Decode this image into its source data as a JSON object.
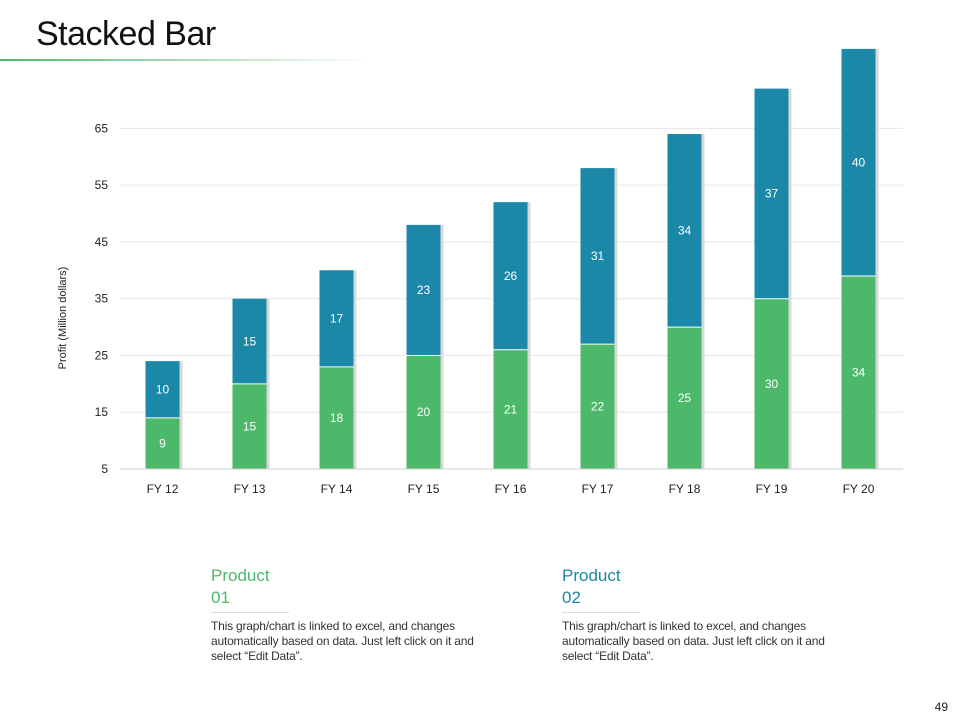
{
  "slide": {
    "title": "Stacked Bar",
    "page_number": "49"
  },
  "colors": {
    "product_01": "#4cb86a",
    "product_02": "#1b88a8",
    "product_01_title": "#4cb86a",
    "product_02_title": "#1b88a8"
  },
  "chart_data": {
    "type": "bar",
    "stacked": true,
    "title": "",
    "xlabel": "",
    "ylabel": "Profit  (Million dollars)",
    "ylim": [
      5,
      70
    ],
    "yticks": [
      5,
      15,
      25,
      35,
      45,
      55,
      65
    ],
    "grid": true,
    "categories": [
      "FY  12",
      "FY  13",
      "FY  14",
      "FY  15",
      "FY  16",
      "FY  17",
      "FY  18",
      "FY  19",
      "FY  20"
    ],
    "series": [
      {
        "values": [
          9,
          15,
          18,
          20,
          21,
          22,
          25,
          30,
          34
        ],
        "color": "#4cb86a"
      },
      {
        "values": [
          10,
          15,
          17,
          23,
          26,
          31,
          34,
          37,
          40
        ],
        "color": "#1b88a8"
      }
    ]
  },
  "legend": [
    {
      "title": "Product 01",
      "description": "This graph/chart is linked to excel, and changes automatically based on data. Just left click on it and select “Edit Data”."
    },
    {
      "title": "Product 02",
      "description": "This graph/chart is linked to excel, and changes automatically based on data. Just left click on it and select “Edit Data”."
    }
  ]
}
